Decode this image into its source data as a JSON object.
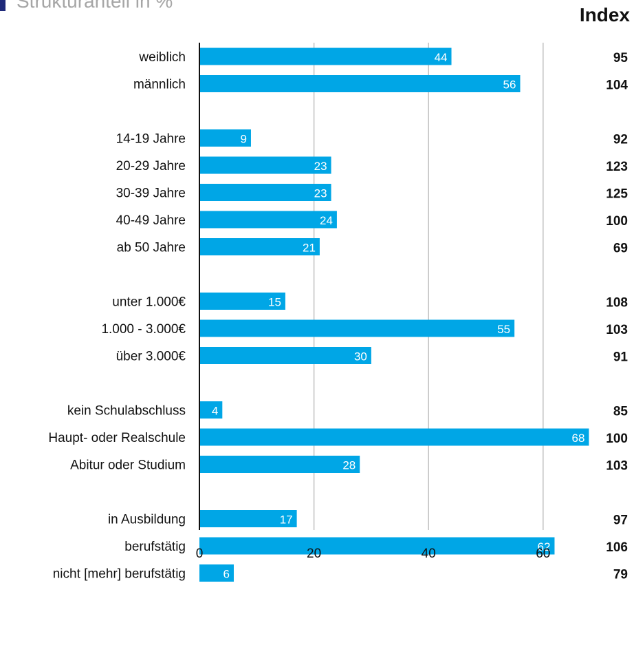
{
  "header": {
    "title": "Strukturanteil in %",
    "index_label": "Index"
  },
  "colors": {
    "bar": "#00a6e6",
    "gridline": "#c0c0c0",
    "axis": "#111111",
    "title": "#a6a6a6",
    "marker": "#1f2a7a"
  },
  "chart_data": {
    "type": "bar",
    "orientation": "horizontal",
    "title": "Strukturanteil in %",
    "xlim": [
      0,
      70
    ],
    "xticks": [
      0,
      20,
      40,
      60
    ],
    "grid": true,
    "groups": [
      {
        "items": [
          {
            "label": "weiblich",
            "value": 44,
            "index": 95
          },
          {
            "label": "männlich",
            "value": 56,
            "index": 104
          }
        ]
      },
      {
        "items": [
          {
            "label": "14-19 Jahre",
            "value": 9,
            "index": 92
          },
          {
            "label": "20-29 Jahre",
            "value": 23,
            "index": 123
          },
          {
            "label": "30-39 Jahre",
            "value": 23,
            "index": 125
          },
          {
            "label": "40-49 Jahre",
            "value": 24,
            "index": 100
          },
          {
            "label": "ab 50 Jahre",
            "value": 21,
            "index": 69
          }
        ]
      },
      {
        "items": [
          {
            "label": "unter 1.000€",
            "value": 15,
            "index": 108
          },
          {
            "label": "1.000 - 3.000€",
            "value": 55,
            "index": 103
          },
          {
            "label": "über 3.000€",
            "value": 30,
            "index": 91
          }
        ]
      },
      {
        "items": [
          {
            "label": "kein Schulabschluss",
            "value": 4,
            "index": 85
          },
          {
            "label": "Haupt- oder Realschule",
            "value": 68,
            "index": 100
          },
          {
            "label": "Abitur oder Studium",
            "value": 28,
            "index": 103
          }
        ]
      },
      {
        "items": [
          {
            "label": "in Ausbildung",
            "value": 17,
            "index": 97
          },
          {
            "label": "berufstätig",
            "value": 62,
            "index": 106
          },
          {
            "label": "nicht [mehr] berufstätig",
            "value": 6,
            "index": 79
          }
        ]
      }
    ]
  }
}
